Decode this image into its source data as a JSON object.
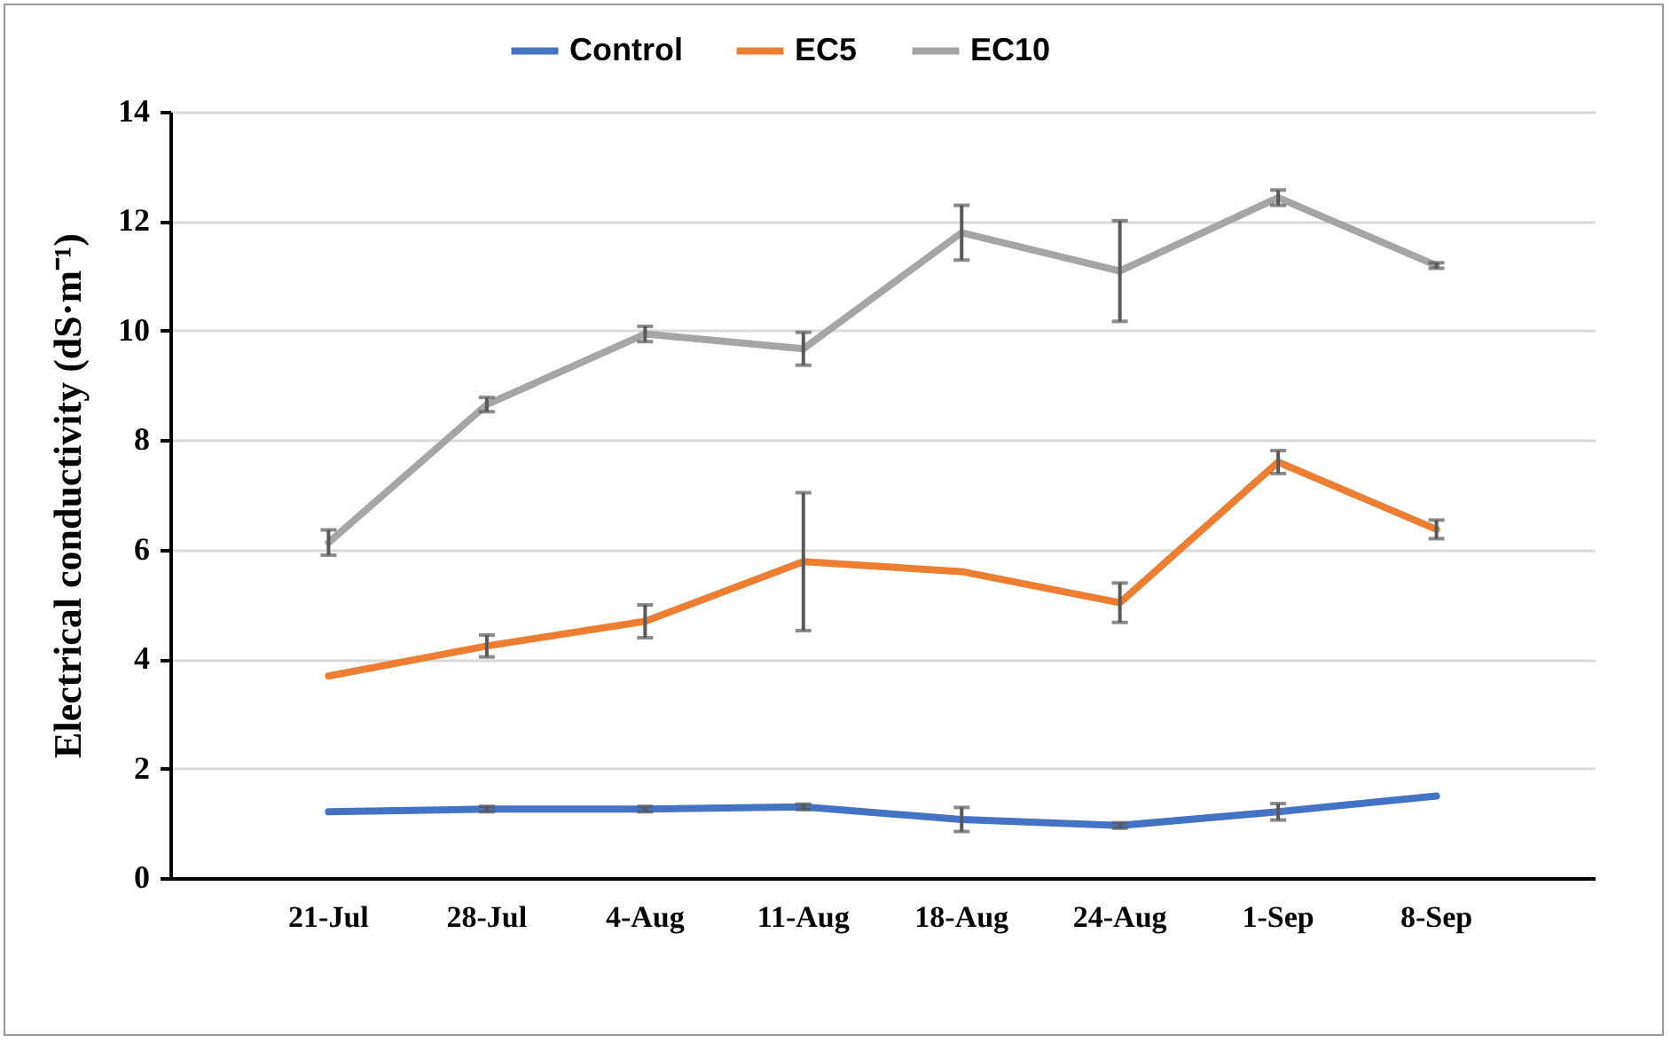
{
  "chart_data": {
    "type": "line",
    "ylabel": "Electrical conductivity (dS·m⁻¹)",
    "categories": [
      "21-Jul",
      "28-Jul",
      "4-Aug",
      "11-Aug",
      "18-Aug",
      "24-Aug",
      "1-Sep",
      "8-Sep"
    ],
    "series": [
      {
        "name": "Control",
        "color": "#4472c4",
        "values": [
          1.21,
          1.26,
          1.26,
          1.3,
          1.07,
          0.96,
          1.21,
          1.5
        ],
        "errors": [
          null,
          0.05,
          0.05,
          0.05,
          0.22,
          0.05,
          0.15,
          null
        ]
      },
      {
        "name": "EC5",
        "color": "#ed7d31",
        "values": [
          3.69,
          4.24,
          4.69,
          5.78,
          5.6,
          5.03,
          7.6,
          6.37
        ],
        "errors": [
          null,
          0.2,
          0.3,
          1.26,
          null,
          0.36,
          0.21,
          0.17
        ]
      },
      {
        "name": "EC10",
        "color": "#a5a5a5",
        "values": [
          6.13,
          8.65,
          9.94,
          9.67,
          11.79,
          11.09,
          12.43,
          11.19
        ],
        "errors": [
          0.23,
          0.13,
          0.14,
          0.3,
          0.5,
          0.92,
          0.14,
          0.05
        ]
      }
    ],
    "ylim": [
      0,
      14
    ],
    "yticks": [
      0,
      2,
      4,
      6,
      8,
      10,
      12,
      14
    ],
    "grid": "y",
    "legend": "top",
    "marker": "none",
    "line_style": "solid"
  }
}
